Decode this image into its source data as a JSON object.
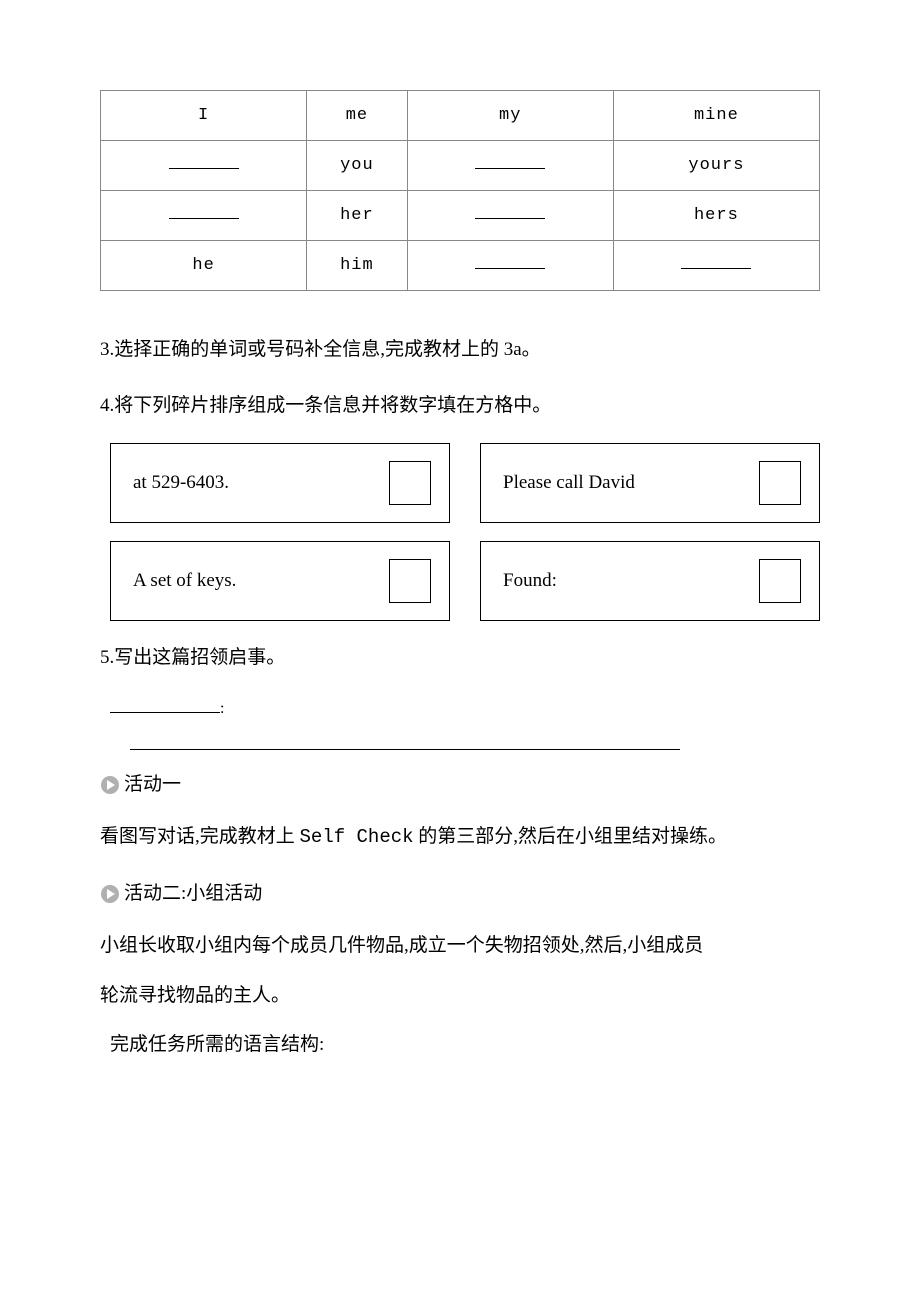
{
  "table": {
    "rows": [
      [
        "I",
        "me",
        "my",
        "mine"
      ],
      [
        "__BLANK__",
        "you",
        "__BLANK__",
        "yours"
      ],
      [
        "__BLANK__",
        "her",
        "__BLANK__",
        "hers"
      ],
      [
        "he",
        "him",
        "__BLANK__",
        "__BLANK__"
      ]
    ]
  },
  "item3": "3.选择正确的单词或号码补全信息,完成教材上的 3a。",
  "item4": "4.将下列碎片排序组成一条信息并将数字填在方格中。",
  "cards": [
    {
      "text": "at 529-6403."
    },
    {
      "text": "Please call David"
    },
    {
      "text": "A set of keys."
    },
    {
      "text": "Found:"
    }
  ],
  "item5": "5.写出这篇招领启事。",
  "colon": ":",
  "activity1": {
    "label": "活动一"
  },
  "activity1_body": "看图写对话,完成教材上 Self Check 的第三部分,然后在小组里结对操练。",
  "activity1_body_a": "看图写对话,完成教材上 ",
  "activity1_body_b": "Self Check",
  "activity1_body_c": " 的第三部分,然后在小组里结对操练。",
  "activity2": {
    "label": "活动二:小组活动"
  },
  "activity2_body1": "小组长收取小组内每个成员几件物品,成立一个失物招领处,然后,小组成员",
  "activity2_body2": "轮流寻找物品的主人。",
  "task_lang": "完成任务所需的语言结构:",
  "icon_color": "#b0b0b0"
}
